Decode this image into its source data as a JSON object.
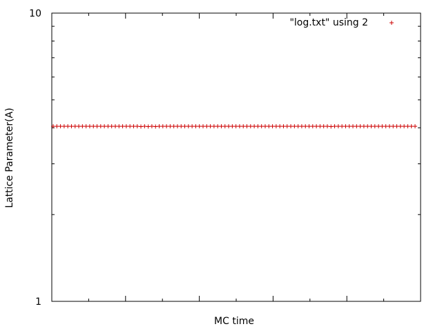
{
  "chart_data": {
    "type": "scatter",
    "title": "",
    "xlabel": "MC time",
    "ylabel": "Lattice Parameter(A)",
    "yscale": "log",
    "ylim": [
      1,
      10
    ],
    "yticks": [
      1,
      10
    ],
    "ytick_labels": [
      "1",
      "10"
    ],
    "xticks_labeled": false,
    "grid": false,
    "legend_position": "top-right",
    "series": [
      {
        "name": "\"log.txt\" using 2",
        "marker": "+",
        "color": "#cc0000",
        "x": [
          0,
          1,
          2,
          3,
          4,
          5,
          6,
          7,
          8,
          9,
          10,
          11,
          12,
          13,
          14,
          15,
          16,
          17,
          18,
          19,
          20,
          21,
          22,
          23,
          24,
          25,
          26,
          27,
          28,
          29,
          30,
          31,
          32,
          33,
          34,
          35,
          36,
          37,
          38,
          39,
          40,
          41,
          42,
          43,
          44,
          45,
          46,
          47,
          48,
          49,
          50,
          51,
          52,
          53,
          54,
          55,
          56,
          57,
          58,
          59,
          60,
          61,
          62,
          63,
          64,
          65,
          66,
          67,
          68,
          69,
          70,
          71,
          72,
          73,
          74,
          75,
          76,
          77,
          78,
          79,
          80,
          81,
          82,
          83,
          84,
          85,
          86,
          87,
          88,
          89,
          90,
          91,
          92,
          93,
          94,
          95,
          96,
          97,
          98,
          99
        ],
        "values": [
          4.05,
          4.05,
          4.05,
          4.05,
          4.05,
          4.05,
          4.05,
          4.05,
          4.05,
          4.05,
          4.05,
          4.05,
          4.05,
          4.05,
          4.05,
          4.05,
          4.05,
          4.05,
          4.05,
          4.05,
          4.05,
          4.05,
          4.05,
          4.05,
          4.04,
          4.05,
          4.04,
          4.05,
          4.04,
          4.05,
          4.05,
          4.05,
          4.05,
          4.05,
          4.05,
          4.05,
          4.05,
          4.05,
          4.05,
          4.05,
          4.05,
          4.05,
          4.05,
          4.05,
          4.05,
          4.05,
          4.05,
          4.05,
          4.05,
          4.05,
          4.05,
          4.05,
          4.05,
          4.05,
          4.05,
          4.05,
          4.05,
          4.05,
          4.05,
          4.05,
          4.05,
          4.05,
          4.05,
          4.05,
          4.05,
          4.05,
          4.05,
          4.05,
          4.05,
          4.05,
          4.05,
          4.05,
          4.05,
          4.05,
          4.05,
          4.05,
          4.04,
          4.05,
          4.05,
          4.05,
          4.05,
          4.05,
          4.05,
          4.05,
          4.05,
          4.05,
          4.05,
          4.05,
          4.05,
          4.05,
          4.05,
          4.05,
          4.05,
          4.05,
          4.05,
          4.05,
          4.05,
          4.05,
          4.05,
          4.05
        ]
      }
    ]
  }
}
